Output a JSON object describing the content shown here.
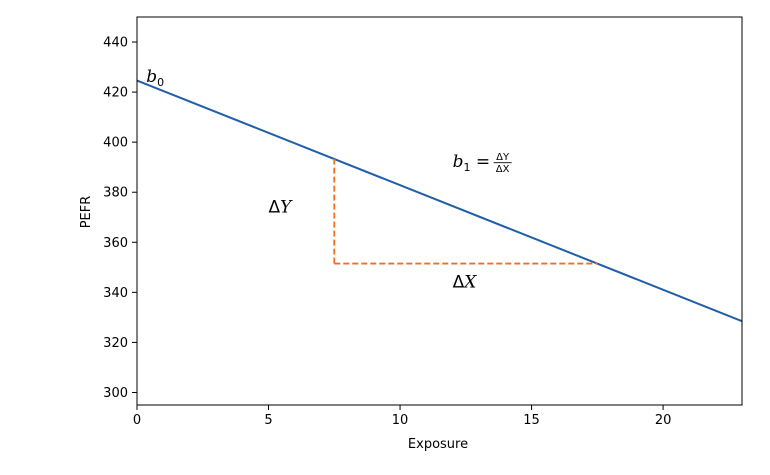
{
  "chart_data": {
    "type": "line",
    "xlabel": "Exposure",
    "ylabel": "PEFR",
    "xlim": [
      0,
      23
    ],
    "ylim": [
      295,
      450
    ],
    "x_ticks": [
      0,
      5,
      10,
      15,
      20
    ],
    "y_ticks": [
      300,
      320,
      340,
      360,
      380,
      400,
      420,
      440
    ],
    "grid": false,
    "series": [
      {
        "x": [
          0,
          23
        ],
        "y": [
          424.6,
          328.5
        ],
        "color": "#1f5fa8"
      }
    ],
    "dashed_guides": {
      "color": "#f07020",
      "vertical": {
        "x": 7.5,
        "y_from": 351.5,
        "y_to": 393.3
      },
      "horizontal": {
        "y": 351.5,
        "x_from": 7.5,
        "x_to": 17.5
      }
    },
    "annotations": {
      "b0": {
        "symbol": "b",
        "sub": "0",
        "x": 0.35,
        "y": 424
      },
      "dY": {
        "delta": "Δ",
        "var": "Y",
        "x": 5.0,
        "y": 372
      },
      "dX": {
        "delta": "Δ",
        "var": "X",
        "x": 12.0,
        "y": 342
      },
      "b1": {
        "symbol": "b",
        "sub": "1",
        "eq": " = ",
        "num": "ΔY",
        "den": "ΔX",
        "x": 12.0,
        "y": 390
      }
    }
  }
}
